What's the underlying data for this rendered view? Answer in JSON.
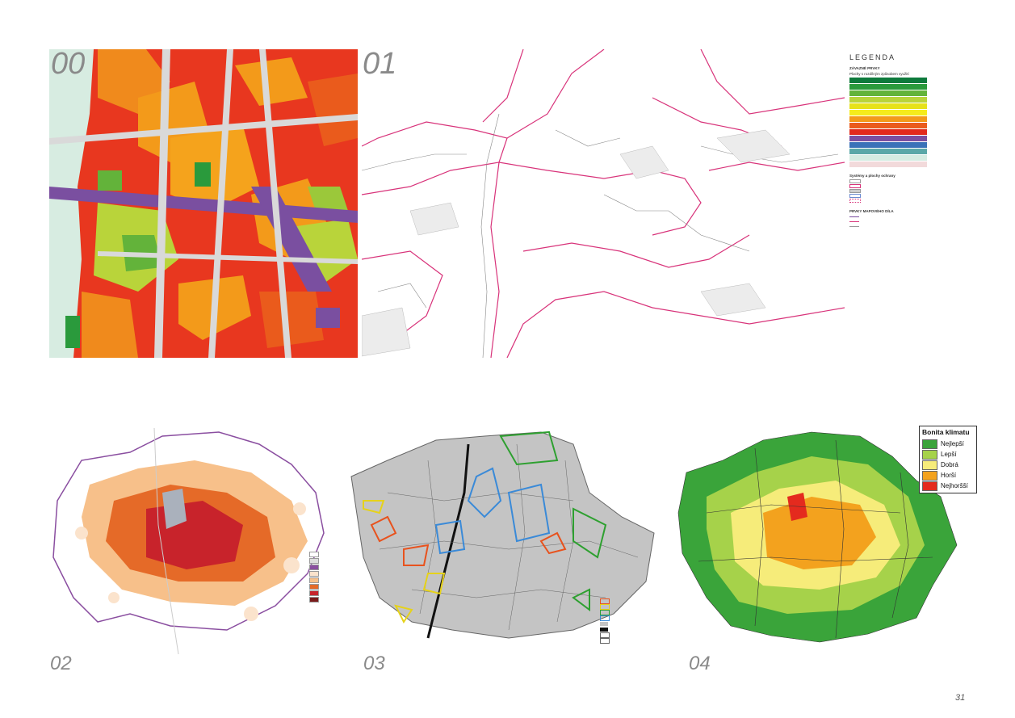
{
  "panels": {
    "p00": {
      "number": "00"
    },
    "p01": {
      "number": "01"
    },
    "p02": {
      "number": "02"
    },
    "p03": {
      "number": "03"
    },
    "p04": {
      "number": "04"
    }
  },
  "legend01": {
    "title": "LEGENDA",
    "heading": "ZÁVAZNÉ PRVKY",
    "subheading": "Plochy s rozdílným způsobem využití",
    "groups": [
      {
        "color": "#0e7a3c"
      },
      {
        "color": "#2a9a3c"
      },
      {
        "color": "#63b33a"
      },
      {
        "color": "#b9d43a"
      },
      {
        "color": "#e6e21a"
      },
      {
        "color": "#f5ec1c"
      },
      {
        "color": "#f39a1a"
      },
      {
        "color": "#ea5b1c"
      },
      {
        "color": "#e22a1d"
      },
      {
        "color": "#7a4fa0"
      },
      {
        "color": "#3a72b8"
      },
      {
        "color": "#5aa8a8"
      },
      {
        "color": "#d5ece2"
      },
      {
        "color": "#f2dadb"
      }
    ],
    "systems_heading": "Systémy a plochy ochrany",
    "mapwork_heading": "PRVKY MAPOVÉHO DÍLA"
  },
  "legend04": {
    "title": "Bonita klimatu",
    "items": [
      {
        "label": "Nejlepší",
        "color": "#3aa43a"
      },
      {
        "label": "Lepší",
        "color": "#a6d24a"
      },
      {
        "label": "Dobrá",
        "color": "#f6ec7a"
      },
      {
        "label": "Horší",
        "color": "#f3a21e"
      },
      {
        "label": "Nejhoršší",
        "color": "#e42a1e"
      }
    ]
  },
  "page": {
    "number": "31"
  }
}
